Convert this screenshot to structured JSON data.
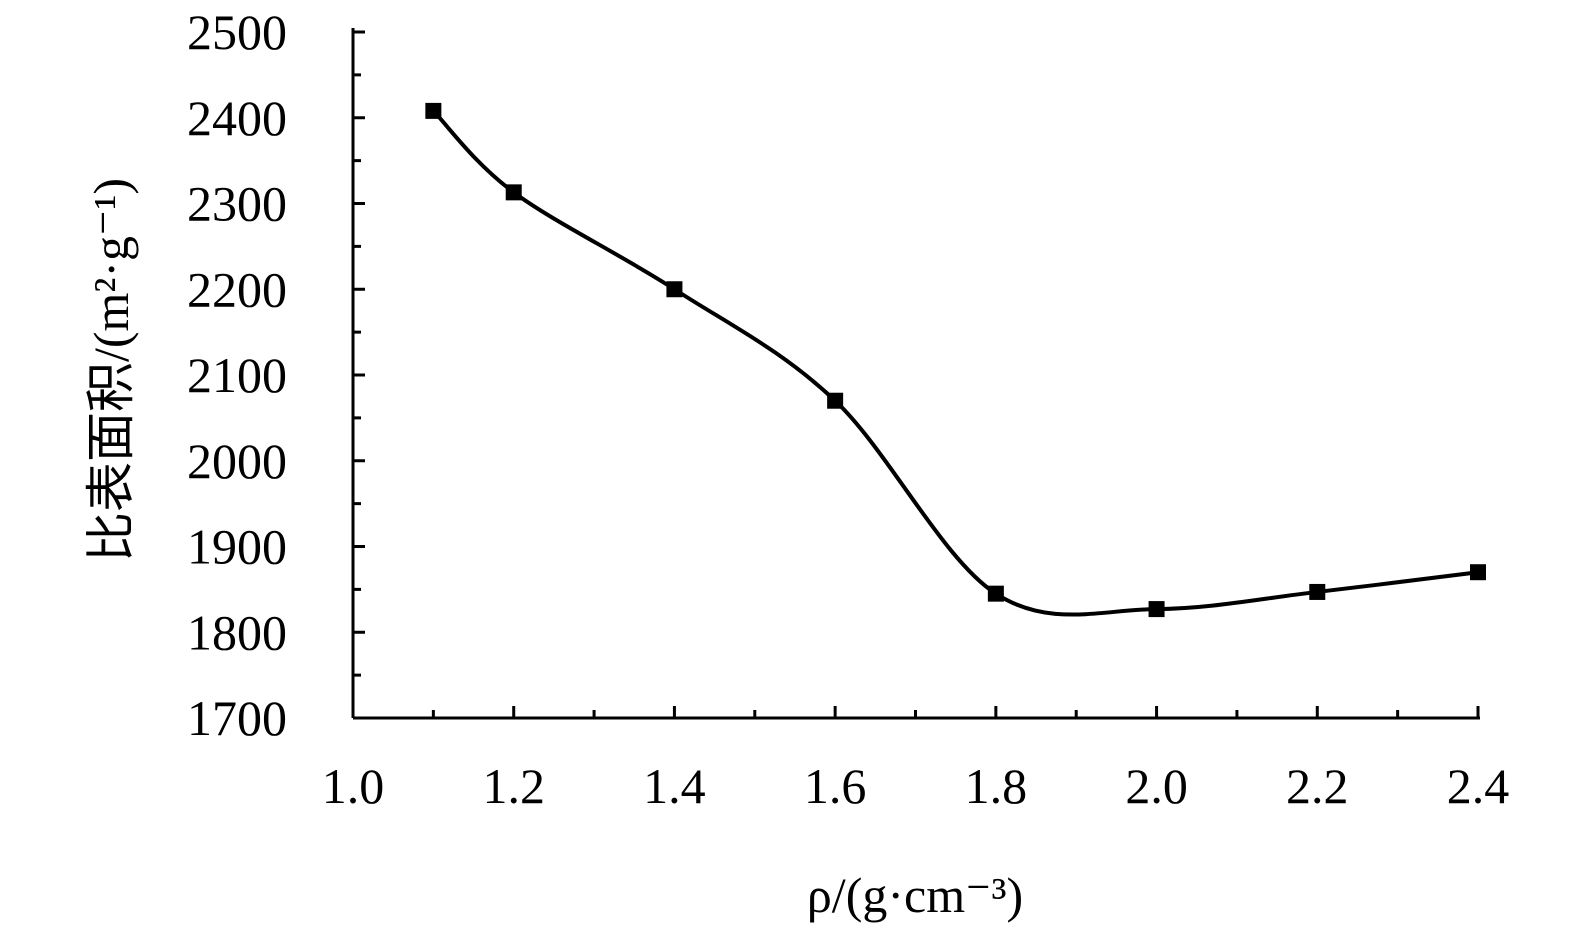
{
  "chart_data": {
    "type": "line",
    "title": "",
    "xlabel": "ρ/(g·cm⁻³)",
    "ylabel": "比表面积/(m²·g⁻¹)",
    "xlim": [
      1.0,
      2.4
    ],
    "ylim": [
      1700,
      2500
    ],
    "x_ticks": [
      "1.0",
      "1.2",
      "1.4",
      "1.6",
      "1.8",
      "2.0",
      "2.2",
      "2.4"
    ],
    "y_ticks": [
      "1700",
      "1800",
      "1900",
      "2000",
      "2100",
      "2200",
      "2300",
      "2400",
      "2500"
    ],
    "grid": false,
    "legend": "none",
    "marker": "square",
    "smooth": true,
    "series": [
      {
        "x": [
          1.1,
          1.2,
          1.4,
          1.6,
          1.8,
          2.0,
          2.2,
          2.4
        ],
        "y": [
          2408,
          2313,
          2200,
          2070,
          1845,
          1827,
          1847,
          1870
        ]
      }
    ]
  }
}
